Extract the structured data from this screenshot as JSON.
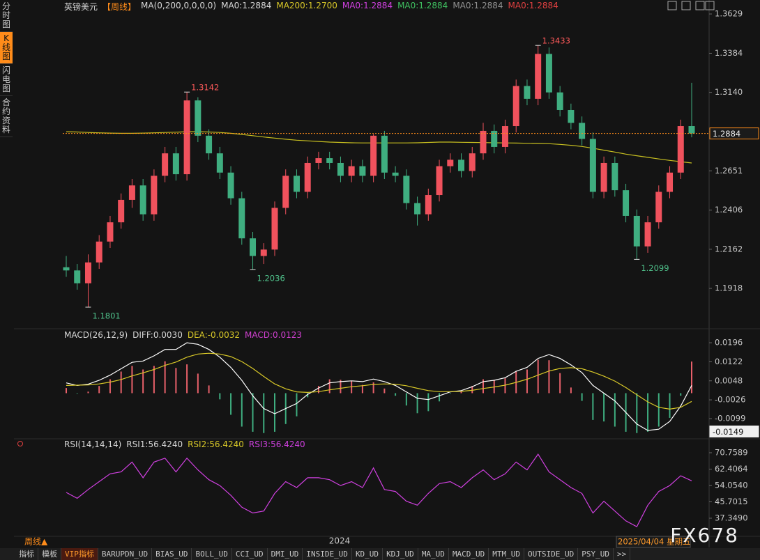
{
  "sidebar": [
    "分时图",
    "K线图",
    "闪电图",
    "合约资料"
  ],
  "chart_data": [
    {
      "type": "candlestick",
      "legend": [
        {
          "label": "英镑美元",
          "color": "#d8d8d8"
        },
        {
          "label": "【周线】",
          "color": "#ff8c1a"
        },
        {
          "label": "MA(0,200,0,0,0,0)",
          "color": "#d8d8d8"
        },
        {
          "label": "MA0:1.2884",
          "color": "#d8d8d8"
        },
        {
          "label": "MA200:1.2700",
          "color": "#d8c828"
        },
        {
          "label": "MA0:1.2884",
          "color": "#d040e0"
        },
        {
          "label": "MA0:1.2884",
          "color": "#3fc060"
        },
        {
          "label": "MA0:1.2884",
          "color": "#909090"
        },
        {
          "label": "MA0:1.2884",
          "color": "#e04040"
        }
      ],
      "open": [
        1.205,
        1.203,
        1.195,
        1.208,
        1.221,
        1.233,
        1.247,
        1.256,
        1.238,
        1.262,
        1.276,
        1.263,
        1.309,
        1.287,
        1.276,
        1.264,
        1.248,
        1.223,
        1.212,
        1.216,
        1.242,
        1.262,
        1.252,
        1.27,
        1.273,
        1.27,
        1.262,
        1.268,
        1.262,
        1.287,
        1.264,
        1.262,
        1.245,
        1.238,
        1.25,
        1.268,
        1.272,
        1.265,
        1.276,
        1.29,
        1.28,
        1.293,
        1.318,
        1.31,
        1.338,
        1.314,
        1.303,
        1.295,
        1.285,
        1.252,
        1.27,
        1.253,
        1.237,
        1.218,
        1.233,
        1.252,
        1.264,
        1.293
      ],
      "high": [
        1.212,
        1.207,
        1.213,
        1.225,
        1.237,
        1.251,
        1.26,
        1.26,
        1.266,
        1.28,
        1.28,
        1.3142,
        1.311,
        1.291,
        1.28,
        1.268,
        1.252,
        1.227,
        1.22,
        1.246,
        1.266,
        1.266,
        1.274,
        1.277,
        1.277,
        1.274,
        1.272,
        1.272,
        1.288,
        1.29,
        1.268,
        1.266,
        1.249,
        1.254,
        1.272,
        1.276,
        1.276,
        1.28,
        1.295,
        1.294,
        1.297,
        1.322,
        1.322,
        1.3433,
        1.342,
        1.318,
        1.307,
        1.299,
        1.289,
        1.274,
        1.274,
        1.257,
        1.241,
        1.237,
        1.256,
        1.268,
        1.297,
        1.32
      ],
      "low": [
        1.199,
        1.191,
        1.1801,
        1.204,
        1.217,
        1.229,
        1.242,
        1.234,
        1.234,
        1.258,
        1.259,
        1.259,
        1.283,
        1.272,
        1.26,
        1.244,
        1.219,
        1.2036,
        1.207,
        1.212,
        1.238,
        1.248,
        1.248,
        1.266,
        1.266,
        1.258,
        1.258,
        1.258,
        1.258,
        1.26,
        1.258,
        1.241,
        1.231,
        1.234,
        1.246,
        1.264,
        1.261,
        1.261,
        1.272,
        1.276,
        1.276,
        1.289,
        1.306,
        1.306,
        1.31,
        1.299,
        1.291,
        1.281,
        1.248,
        1.248,
        1.249,
        1.233,
        1.2099,
        1.214,
        1.229,
        1.248,
        1.26,
        1.286
      ],
      "close": [
        1.203,
        1.195,
        1.208,
        1.221,
        1.233,
        1.247,
        1.256,
        1.238,
        1.262,
        1.276,
        1.263,
        1.309,
        1.287,
        1.276,
        1.264,
        1.248,
        1.223,
        1.212,
        1.216,
        1.242,
        1.262,
        1.252,
        1.27,
        1.273,
        1.27,
        1.262,
        1.268,
        1.262,
        1.287,
        1.264,
        1.262,
        1.245,
        1.238,
        1.25,
        1.268,
        1.272,
        1.265,
        1.276,
        1.29,
        1.28,
        1.293,
        1.318,
        1.31,
        1.338,
        1.314,
        1.303,
        1.295,
        1.285,
        1.252,
        1.27,
        1.253,
        1.237,
        1.218,
        1.233,
        1.252,
        1.264,
        1.293,
        1.2884
      ],
      "up_color": "#f0525d",
      "down_color": "#3fae80",
      "series": [
        {
          "color": "#c8c020",
          "values": [
            1.2895,
            1.2893,
            1.289,
            1.2888,
            1.2886,
            1.2885,
            1.2885,
            1.2886,
            1.2888,
            1.289,
            1.2892,
            1.2895,
            1.2895,
            1.2893,
            1.289,
            1.2885,
            1.2878,
            1.287,
            1.2862,
            1.2855,
            1.2848,
            1.2842,
            1.2838,
            1.2834,
            1.283,
            1.2828,
            1.2826,
            1.2825,
            1.2825,
            1.2825,
            1.2825,
            1.2825,
            1.2826,
            1.2828,
            1.283,
            1.283,
            1.2829,
            1.2828,
            1.2827,
            1.2826,
            1.2825,
            1.2824,
            1.2823,
            1.2822,
            1.282,
            1.2816,
            1.281,
            1.2803,
            1.2792,
            1.278,
            1.2768,
            1.2755,
            1.2745,
            1.2735,
            1.2725,
            1.2716,
            1.2708,
            1.27
          ]
        }
      ],
      "ylim": [
        1.1675,
        1.3664
      ],
      "yticks": [
        1.3629,
        1.3384,
        {
          "value": 1.314,
          "label": "1.3140"
        },
        1.2895,
        1.2651,
        1.2406,
        1.2162,
        1.1918
      ],
      "annotations": [
        {
          "value": 1.3433,
          "label": "1.3433"
        },
        {
          "value": 1.3142,
          "label": "1.3142"
        },
        {
          "value": 1.1801,
          "label": "1.1801"
        },
        {
          "value": 1.2036,
          "label": "1.2036"
        },
        {
          "value": 1.2099,
          "label": "1.2099"
        }
      ],
      "current": {
        "value": 1.2884,
        "label": "1.2884"
      }
    },
    {
      "type": "macd",
      "legend": [
        {
          "label": "MACD(26,12,9)",
          "color": "#d8d8d8"
        },
        {
          "label": "DIFF:0.0030",
          "color": "#d8d8d8"
        },
        {
          "label": "DEA:-0.0032",
          "color": "#d8c828"
        },
        {
          "label": "MACD:0.0123",
          "color": "#d040d0"
        }
      ],
      "histogram": [
        0.002,
        -0.0002,
        0.0006,
        0.0028,
        0.0054,
        0.0084,
        0.0106,
        0.0092,
        0.0106,
        0.0124,
        0.0098,
        0.0112,
        0.0076,
        0.003,
        -0.0024,
        -0.0084,
        -0.013,
        -0.015,
        -0.0155,
        -0.015,
        -0.012,
        -0.009,
        -0.0016,
        0.0028,
        0.0054,
        0.0052,
        0.0046,
        0.0032,
        0.0042,
        0.0018,
        -0.001,
        -0.0048,
        -0.0078,
        -0.007,
        -0.0032,
        -0.0002,
        0.0006,
        0.0028,
        0.0054,
        0.0052,
        0.0058,
        0.0086,
        0.0092,
        0.013,
        0.0128,
        0.0078,
        0.0022,
        -0.003,
        -0.0104,
        -0.011,
        -0.013,
        -0.015,
        -0.0155,
        -0.015,
        -0.013,
        -0.0096,
        -0.001,
        0.0123
      ],
      "up_color": "#e8606a",
      "down_color": "#3fae80",
      "series": [
        {
          "color": "#ffffff",
          "values": [
            0.004,
            0.003,
            0.0035,
            0.005,
            0.007,
            0.0095,
            0.012,
            0.0125,
            0.0145,
            0.017,
            0.017,
            0.0196,
            0.019,
            0.017,
            0.014,
            0.01,
            0.005,
            -0.001,
            -0.006,
            -0.008,
            -0.006,
            -0.004,
            -0.0005,
            0.002,
            0.004,
            0.0045,
            0.0048,
            0.0045,
            0.0055,
            0.0045,
            0.003,
            0.0005,
            -0.002,
            -0.0025,
            -0.001,
            0.0005,
            0.001,
            0.0025,
            0.0045,
            0.005,
            0.006,
            0.0085,
            0.01,
            0.0135,
            0.015,
            0.0135,
            0.011,
            0.008,
            0.003,
            0.0,
            -0.003,
            -0.0075,
            -0.012,
            -0.0145,
            -0.014,
            -0.011,
            -0.005,
            0.003
          ]
        },
        {
          "color": "#d8c828",
          "values": [
            0.003,
            0.0031,
            0.0032,
            0.0036,
            0.0043,
            0.0053,
            0.0067,
            0.0079,
            0.0092,
            0.0108,
            0.0121,
            0.014,
            0.0152,
            0.0155,
            0.0152,
            0.0142,
            0.0123,
            0.0096,
            0.0065,
            0.0036,
            0.0017,
            0.0005,
            0.0003,
            0.0006,
            0.0013,
            0.0019,
            0.0025,
            0.0029,
            0.0034,
            0.0036,
            0.0035,
            0.0029,
            0.0019,
            0.001,
            0.0006,
            0.0006,
            0.0007,
            0.0011,
            0.0018,
            0.0024,
            0.0031,
            0.0042,
            0.0054,
            0.007,
            0.0086,
            0.0096,
            0.0099,
            0.0095,
            0.0082,
            0.0066,
            0.0047,
            0.0022,
            -0.0006,
            -0.0034,
            -0.0055,
            -0.0062,
            -0.0055,
            -0.0032
          ]
        }
      ],
      "ylim": [
        -0.0172,
        0.0245
      ],
      "yticks": [
        0.0196,
        0.0122,
        0.0048,
        -0.0026,
        -0.0099
      ],
      "current": {
        "value": -0.0149,
        "label": "-0.0149"
      }
    },
    {
      "type": "line",
      "legend": [
        {
          "label": "RSI(14,14,14)",
          "color": "#d8d8d8"
        },
        {
          "label": "RSI1:56.4240",
          "color": "#d8d8d8"
        },
        {
          "label": "RSI2:56.4240",
          "color": "#d8c828"
        },
        {
          "label": "RSI3:56.4240",
          "color": "#d040e0"
        }
      ],
      "series": [
        {
          "color": "#d040e0",
          "values": [
            50.5,
            47.5,
            52,
            56,
            60,
            61,
            66,
            58,
            66,
            68,
            61,
            68,
            62,
            57,
            54,
            49,
            43,
            40,
            41,
            50,
            56,
            53,
            58,
            58,
            57,
            54,
            56,
            53,
            63,
            52,
            51,
            46,
            44,
            50,
            55,
            56,
            53,
            58,
            62,
            57,
            60,
            66,
            62,
            70,
            61,
            57,
            53,
            50,
            40,
            46,
            41,
            36,
            33,
            44,
            51,
            54,
            59,
            56.424
          ]
        }
      ],
      "ylim": [
        28.1,
        77.16
      ],
      "yticks": [
        70.7589,
        62.4064,
        {
          "value": 54.054,
          "label": "54.0540"
        },
        45.7015,
        {
          "value": 37.349,
          "label": "37.3490"
        }
      ]
    }
  ],
  "x_axis": {
    "period": "周线▲",
    "year": "2024",
    "date": "2025/04/04 星期五"
  },
  "watermark": "FX678",
  "tabs": [
    "指标",
    "模板",
    "VIP指标",
    "BARUPDN_UD",
    "BIAS_UD",
    "BOLL_UD",
    "CCI_UD",
    "DMI_UD",
    "INSIDE_UD",
    "KD_UD",
    "KDJ_UD",
    "MA_UD",
    "MACD_UD",
    "MTM_UD",
    "OUTSIDE_UD",
    "PSY_UD",
    ">>"
  ]
}
